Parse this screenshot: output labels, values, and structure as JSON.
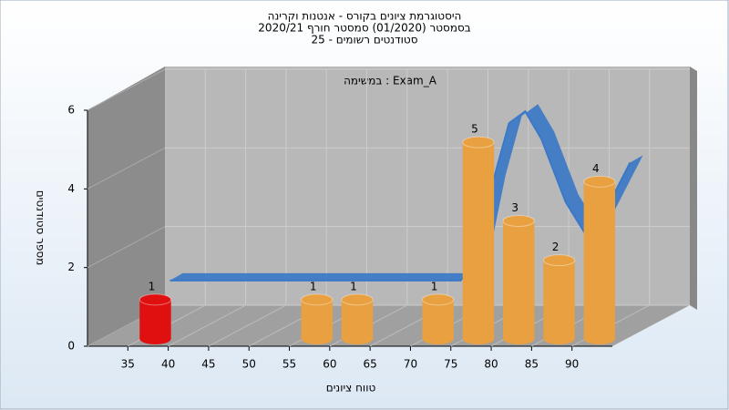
{
  "chart_data": {
    "type": "histogram3d",
    "title": [
      "היסטוגרמת ציונים בקורס - אנטנות וקרינה",
      "בסמסטר  (01/2020)  סמסטר חורף 2020/21",
      "סטודנטים רשומים - 25"
    ],
    "annotation": "במשימה : Exam_A",
    "x_label": "טווח ציונים",
    "y_label": "מספר סטודנטים",
    "xlim": [
      30,
      95
    ],
    "xticks": [
      35,
      40,
      45,
      50,
      55,
      60,
      65,
      70,
      75,
      80,
      85,
      90
    ],
    "ylim": [
      0,
      6
    ],
    "yticks": [
      0,
      2,
      4,
      6
    ],
    "bin_width": 5,
    "x": [
      35,
      55,
      60,
      70,
      75,
      80,
      85,
      90
    ],
    "values": [
      1,
      1,
      1,
      1,
      5,
      3,
      2,
      4
    ],
    "colors": [
      "#e01010",
      "#e8a040",
      "#e8a040",
      "#e8a040",
      "#e8a040",
      "#e8a040",
      "#e8a040",
      "#e8a040"
    ],
    "curve": {
      "color": "#3a78c8",
      "x": [
        34,
        50,
        60,
        70,
        72,
        74,
        76,
        78,
        80,
        83,
        86,
        91
      ],
      "values": [
        1,
        1,
        1,
        1,
        1.5,
        3.5,
        5,
        5.3,
        4.6,
        3,
        2,
        4
      ]
    },
    "grid": true
  }
}
